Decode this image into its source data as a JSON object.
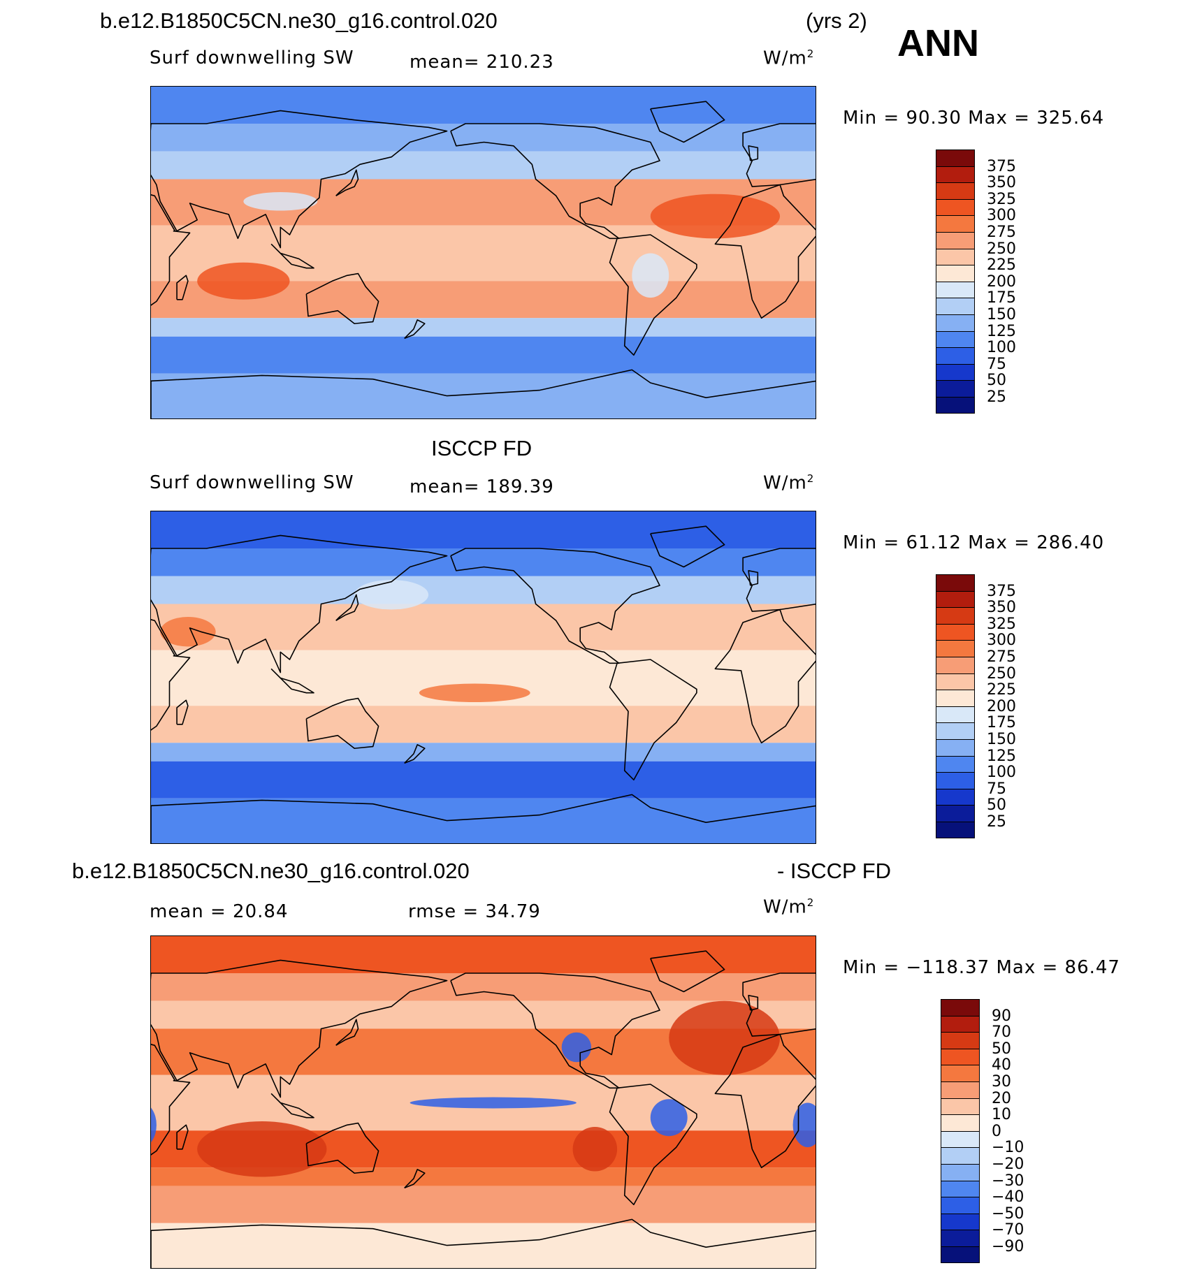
{
  "header": {
    "case_name": "b.e12.B1850C5CN.ne30_g16.control.020",
    "years": "(yrs 2)",
    "season": "ANN"
  },
  "panels": [
    {
      "id": "model",
      "variable": "Surf downwelling SW",
      "mean_text": "mean=  210.23",
      "units": "W/m",
      "units_sup": "2",
      "minmax_text": "Min =   90.30  Max  =  325.64",
      "colorbar": {
        "labels": [
          "375",
          "350",
          "325",
          "300",
          "275",
          "250",
          "225",
          "200",
          "175",
          "150",
          "125",
          "100",
          "75",
          "50",
          "25"
        ],
        "colors": [
          "#7a0a0a",
          "#b21d0e",
          "#d63a14",
          "#ee5522",
          "#f4783f",
          "#f79d76",
          "#fbc6a8",
          "#fde8d6",
          "#d9e8f8",
          "#b2cff5",
          "#86b0f3",
          "#4f86f0",
          "#2d5fe6",
          "#1638cc",
          "#0b1c9a",
          "#06117a"
        ]
      },
      "map_field": "model"
    },
    {
      "id": "obs",
      "title": "ISCCP FD",
      "variable": "Surf downwelling SW",
      "mean_text": "mean=  189.39",
      "units": "W/m",
      "units_sup": "2",
      "minmax_text": "Min =   61.12  Max  =  286.40",
      "colorbar": {
        "labels": [
          "375",
          "350",
          "325",
          "300",
          "275",
          "250",
          "225",
          "200",
          "175",
          "150",
          "125",
          "100",
          "75",
          "50",
          "25"
        ],
        "colors": [
          "#7a0a0a",
          "#b21d0e",
          "#d63a14",
          "#ee5522",
          "#f4783f",
          "#f79d76",
          "#fbc6a8",
          "#fde8d6",
          "#d9e8f8",
          "#b2cff5",
          "#86b0f3",
          "#4f86f0",
          "#2d5fe6",
          "#1638cc",
          "#0b1c9a",
          "#06117a"
        ]
      },
      "map_field": "obs"
    },
    {
      "id": "diff",
      "title_left": "b.e12.B1850C5CN.ne30_g16.control.020",
      "title_right": "- ISCCP FD",
      "mean_text": "mean =   20.84",
      "rmse_text": "rmse =   34.79",
      "units": "W/m",
      "units_sup": "2",
      "minmax_text": "Min = −118.37  Max  =   86.47",
      "colorbar": {
        "labels": [
          "90",
          "70",
          "50",
          "40",
          "30",
          "20",
          "10",
          "0",
          "−10",
          "−20",
          "−30",
          "−40",
          "−50",
          "−70",
          "−90"
        ],
        "colors": [
          "#7a0a0a",
          "#b21d0e",
          "#d63a14",
          "#ee5522",
          "#f4783f",
          "#f79d76",
          "#fbc6a8",
          "#fde8d6",
          "#d9e8f8",
          "#b2cff5",
          "#86b0f3",
          "#4f86f0",
          "#2d5fe6",
          "#1638cc",
          "#0b1c9a",
          "#06117a"
        ]
      },
      "map_field": "diff"
    }
  ],
  "map_colors": {
    "model": {
      "polar_n": "#4f86f0",
      "subpolar_n": "#86b0f3",
      "midlat_n": "#b2cff5",
      "subtrop_n": "#f79d76",
      "tropics": "#fbc6a8",
      "subtrop_s": "#f79d76",
      "midlat_s": "#b2cff5",
      "subpolar_s": "#4f86f0",
      "polar_s": "#86b0f3",
      "hot": "#ee5522",
      "cool": "#d9e8f8"
    },
    "obs": {
      "polar_n": "#2d5fe6",
      "subpolar_n": "#4f86f0",
      "midlat_n": "#b2cff5",
      "subtrop_n": "#fbc6a8",
      "tropics": "#fde8d6",
      "subtrop_s": "#fbc6a8",
      "midlat_s": "#86b0f3",
      "subpolar_s": "#2d5fe6",
      "polar_s": "#4f86f0",
      "hot": "#f4783f",
      "cool": "#d9e8f8"
    },
    "diff": {
      "polar_n": "#ee5522",
      "subpolar_n": "#f79d76",
      "midlat_n": "#fbc6a8",
      "subtrop_n": "#f4783f",
      "tropics": "#fbc6a8",
      "subtrop_s": "#ee5522",
      "midlat_s": "#f4783f",
      "subpolar_s": "#f79d76",
      "polar_s": "#fde8d6",
      "hot": "#d63a14",
      "cool": "#2d5fe6"
    },
    "coast": "#000000"
  }
}
